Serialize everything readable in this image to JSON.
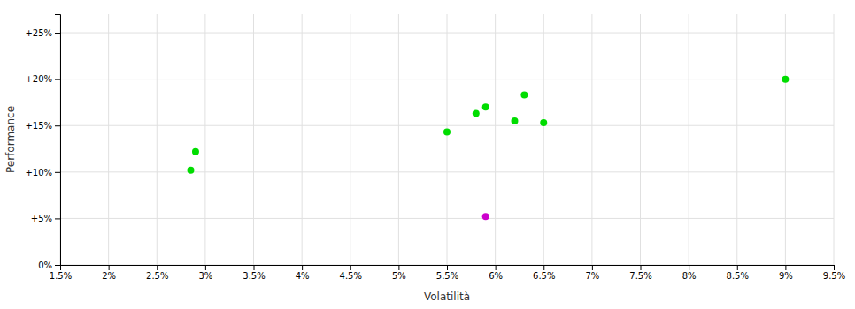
{
  "chart_data": {
    "type": "scatter",
    "xlabel": "Volatilità",
    "ylabel": "Performance",
    "xlim": [
      0.015,
      0.095
    ],
    "ylim": [
      0.0,
      0.27
    ],
    "xticks": [
      {
        "value": 0.015,
        "label": "1.5%"
      },
      {
        "value": 0.02,
        "label": "2%"
      },
      {
        "value": 0.025,
        "label": "2.5%"
      },
      {
        "value": 0.03,
        "label": "3%"
      },
      {
        "value": 0.035,
        "label": "3.5%"
      },
      {
        "value": 0.04,
        "label": "4%"
      },
      {
        "value": 0.045,
        "label": "4.5%"
      },
      {
        "value": 0.05,
        "label": "5%"
      },
      {
        "value": 0.055,
        "label": "5.5%"
      },
      {
        "value": 0.06,
        "label": "6%"
      },
      {
        "value": 0.065,
        "label": "6.5%"
      },
      {
        "value": 0.07,
        "label": "7%"
      },
      {
        "value": 0.075,
        "label": "7.5%"
      },
      {
        "value": 0.08,
        "label": "8%"
      },
      {
        "value": 0.085,
        "label": "8.5%"
      },
      {
        "value": 0.09,
        "label": "9%"
      },
      {
        "value": 0.095,
        "label": "9.5%"
      }
    ],
    "yticks": [
      {
        "value": 0.0,
        "label": "0%"
      },
      {
        "value": 0.05,
        "label": "+5%"
      },
      {
        "value": 0.1,
        "label": "+10%"
      },
      {
        "value": 0.15,
        "label": "+15%"
      },
      {
        "value": 0.2,
        "label": "+20%"
      },
      {
        "value": 0.25,
        "label": "+25%"
      }
    ],
    "grid": true,
    "series": [
      {
        "color": "#00dd00",
        "x": [
          0.029,
          0.0285,
          0.055,
          0.058,
          0.059,
          0.062,
          0.063,
          0.065,
          0.09
        ],
        "values": [
          0.122,
          0.102,
          0.143,
          0.163,
          0.17,
          0.155,
          0.183,
          0.153,
          0.2
        ]
      },
      {
        "color": "#cc00cc",
        "x": [
          0.059
        ],
        "values": [
          0.052
        ]
      }
    ]
  }
}
